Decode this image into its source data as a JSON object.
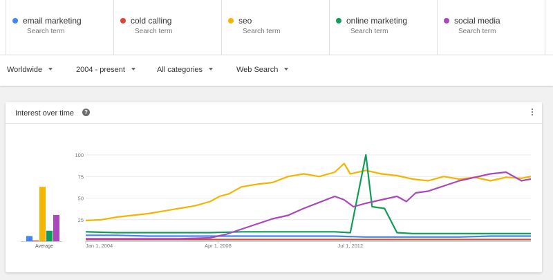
{
  "terms": [
    {
      "name": "email marketing",
      "sub": "Search term",
      "color": "#4285f4"
    },
    {
      "name": "cold calling",
      "sub": "Search term",
      "color": "#db4437"
    },
    {
      "name": "seo",
      "sub": "Search term",
      "color": "#f4b400"
    },
    {
      "name": "online marketing",
      "sub": "Search term",
      "color": "#0f9d58"
    },
    {
      "name": "social media",
      "sub": "Search term",
      "color": "#ab47bc"
    }
  ],
  "filters": {
    "region": "Worldwide",
    "period": "2004 - present",
    "category": "All categories",
    "property": "Web Search"
  },
  "card": {
    "title": "Interest over time",
    "help_icon": "question-mark-icon",
    "more_icon": "more-vert-icon"
  },
  "chart_data": [
    {
      "type": "bar",
      "xlabel": "Average",
      "categories": [
        "email marketing",
        "cold calling",
        "seo",
        "online marketing",
        "social media"
      ],
      "values": [
        6,
        1,
        62,
        12,
        30
      ],
      "colors": [
        "#4285f4",
        "#db4437",
        "#f4b400",
        "#0f9d58",
        "#ab47bc"
      ]
    },
    {
      "type": "line",
      "ylim": [
        0,
        100
      ],
      "yticks": [
        25,
        50,
        75,
        100
      ],
      "xticks": [
        "Jan 1, 2004",
        "Apr 1, 2008",
        "Jul 1, 2012"
      ],
      "x_start_year": 2004.0,
      "x_end_year": 2018.3,
      "grid": true,
      "series": [
        {
          "name": "email marketing",
          "color": "#4285f4",
          "points": [
            [
              2004,
              7
            ],
            [
              2005,
              7
            ],
            [
              2006,
              6
            ],
            [
              2007,
              6
            ],
            [
              2008,
              6
            ],
            [
              2009,
              6
            ],
            [
              2010,
              6
            ],
            [
              2011,
              6
            ],
            [
              2012,
              6
            ],
            [
              2013,
              5
            ],
            [
              2014,
              5
            ],
            [
              2015,
              5
            ],
            [
              2016,
              5
            ],
            [
              2017,
              6
            ],
            [
              2018.3,
              6
            ]
          ]
        },
        {
          "name": "cold calling",
          "color": "#db4437",
          "points": [
            [
              2004,
              2
            ],
            [
              2006,
              2
            ],
            [
              2008,
              2
            ],
            [
              2010,
              2
            ],
            [
              2012,
              2
            ],
            [
              2014,
              2
            ],
            [
              2016,
              2
            ],
            [
              2018.3,
              2
            ]
          ]
        },
        {
          "name": "seo",
          "color": "#f4b400",
          "points": [
            [
              2004,
              24
            ],
            [
              2004.5,
              25
            ],
            [
              2005,
              28
            ],
            [
              2005.5,
              30
            ],
            [
              2006,
              32
            ],
            [
              2006.5,
              35
            ],
            [
              2007,
              38
            ],
            [
              2007.5,
              41
            ],
            [
              2008,
              46
            ],
            [
              2008.3,
              52
            ],
            [
              2008.6,
              55
            ],
            [
              2009,
              63
            ],
            [
              2009.5,
              66
            ],
            [
              2010,
              68
            ],
            [
              2010.5,
              75
            ],
            [
              2011,
              78
            ],
            [
              2011.5,
              75
            ],
            [
              2012,
              80
            ],
            [
              2012.3,
              90
            ],
            [
              2012.5,
              78
            ],
            [
              2013,
              82
            ],
            [
              2013.5,
              78
            ],
            [
              2014,
              76
            ],
            [
              2014.5,
              72
            ],
            [
              2015,
              70
            ],
            [
              2015.5,
              75
            ],
            [
              2016,
              72
            ],
            [
              2016.5,
              74
            ],
            [
              2017,
              70
            ],
            [
              2017.5,
              74
            ],
            [
              2018,
              73
            ],
            [
              2018.3,
              75
            ]
          ]
        },
        {
          "name": "online marketing",
          "color": "#0f9d58",
          "points": [
            [
              2004,
              11
            ],
            [
              2005,
              10
            ],
            [
              2006,
              10
            ],
            [
              2007,
              10
            ],
            [
              2008,
              10
            ],
            [
              2009,
              11
            ],
            [
              2010,
              11
            ],
            [
              2011,
              11
            ],
            [
              2012,
              11
            ],
            [
              2012.5,
              10
            ],
            [
              2013,
              100
            ],
            [
              2013.2,
              40
            ],
            [
              2013.6,
              38
            ],
            [
              2014,
              10
            ],
            [
              2014.5,
              9
            ],
            [
              2015,
              9
            ],
            [
              2016,
              9
            ],
            [
              2017,
              9
            ],
            [
              2018.3,
              9
            ]
          ]
        },
        {
          "name": "social media",
          "color": "#ab47bc",
          "points": [
            [
              2004,
              3
            ],
            [
              2005,
              3
            ],
            [
              2006,
              3
            ],
            [
              2007,
              3
            ],
            [
              2008,
              4
            ],
            [
              2008.5,
              8
            ],
            [
              2009,
              14
            ],
            [
              2009.5,
              20
            ],
            [
              2010,
              26
            ],
            [
              2010.5,
              30
            ],
            [
              2011,
              38
            ],
            [
              2011.5,
              45
            ],
            [
              2012,
              52
            ],
            [
              2012.3,
              48
            ],
            [
              2012.6,
              40
            ],
            [
              2013,
              44
            ],
            [
              2013.5,
              48
            ],
            [
              2014,
              52
            ],
            [
              2014.3,
              46
            ],
            [
              2014.6,
              56
            ],
            [
              2015,
              58
            ],
            [
              2015.5,
              64
            ],
            [
              2016,
              70
            ],
            [
              2016.5,
              74
            ],
            [
              2017,
              78
            ],
            [
              2017.5,
              80
            ],
            [
              2018,
              70
            ],
            [
              2018.3,
              72
            ]
          ]
        }
      ]
    }
  ]
}
